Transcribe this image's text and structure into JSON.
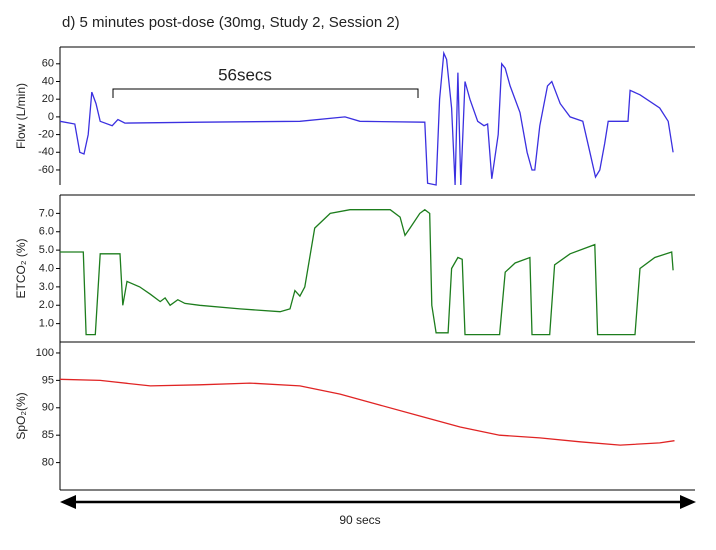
{
  "chart_data": [
    {
      "type": "line",
      "title": "d) 5 minutes post-dose (30mg, Study 2, Session 2)",
      "annotation": "56secs",
      "ylabel": "Flow (L/min)",
      "color": "#3b30e0",
      "x": [
        0,
        2.1,
        2.8,
        3.4,
        4.0,
        4.5,
        5.1,
        5.7,
        7.4,
        8.2,
        9.2,
        19.8,
        34.0,
        40.4,
        42.5,
        51.7,
        52.1,
        53.3,
        53.8,
        54.4,
        54.8,
        55.5,
        56.0,
        56.4,
        56.8,
        57.4,
        58.1,
        59.2,
        60.1,
        60.6,
        61.2,
        62.1,
        62.6,
        63.1,
        63.8,
        65.2,
        66.2,
        66.9,
        67.3,
        68.0,
        69.1,
        69.7,
        70.9,
        72.3,
        74.1,
        75.1,
        75.9,
        76.5,
        77.2,
        77.7,
        80.5,
        80.8,
        82.2,
        85.0,
        86.2,
        86.9
      ],
      "values": [
        -5,
        -8,
        -40,
        -42,
        -20,
        28,
        15,
        -5,
        -10,
        -3,
        -7,
        -6,
        -5,
        0,
        -5,
        -6,
        -75,
        -77,
        20,
        72,
        65,
        10,
        -77,
        50,
        -77,
        40,
        20,
        -5,
        -10,
        -8,
        -70,
        -20,
        60,
        55,
        35,
        5,
        -40,
        -60,
        -60,
        -10,
        35,
        40,
        15,
        0,
        -5,
        -40,
        -68,
        -60,
        -30,
        -5,
        -5,
        30,
        25,
        10,
        -5,
        -40
      ],
      "xlim": [
        0,
        90
      ],
      "ylim": [
        -77,
        79
      ],
      "yticks": [
        60,
        40,
        20,
        0,
        -20,
        -40,
        -60
      ]
    },
    {
      "type": "line",
      "ylabel": "ETCO₂ (%)",
      "color": "#1d7d1d",
      "x": [
        0,
        3.3,
        3.7,
        5.0,
        5.7,
        8.5,
        8.9,
        9.5,
        11.3,
        12.8,
        14.2,
        14.9,
        15.6,
        16.7,
        17.7,
        19.8,
        25.5,
        31.2,
        32.6,
        33.3,
        34.0,
        34.7,
        36.1,
        38.3,
        41.1,
        46.8,
        48.2,
        48.9,
        49.6,
        51.0,
        51.7,
        52.4,
        52.7,
        53.3,
        55.0,
        55.5,
        56.4,
        57.0,
        57.4,
        62.3,
        63.1,
        64.5,
        66.6,
        66.9,
        69.4,
        70.1,
        72.3,
        75.8,
        76.2,
        81.5,
        82.2,
        84.3,
        86.7,
        86.9
      ],
      "values": [
        4.9,
        4.9,
        0.4,
        0.4,
        4.8,
        4.8,
        2.0,
        3.3,
        3.0,
        2.6,
        2.2,
        2.4,
        2.0,
        2.3,
        2.1,
        2.0,
        1.8,
        1.65,
        1.8,
        2.8,
        2.5,
        3.0,
        6.2,
        7.0,
        7.2,
        7.2,
        6.8,
        5.8,
        6.2,
        7.0,
        7.2,
        7.0,
        2.0,
        0.5,
        0.5,
        4.0,
        4.6,
        4.5,
        0.4,
        0.4,
        3.8,
        4.3,
        4.6,
        0.4,
        0.4,
        4.2,
        4.8,
        5.3,
        0.4,
        0.4,
        4.0,
        4.6,
        4.9,
        3.9
      ],
      "xlim": [
        0,
        90
      ],
      "ylim": [
        0,
        8
      ],
      "yticks": [
        {
          "value": 7,
          "label": "7.0"
        },
        {
          "value": 6,
          "label": "6.0"
        },
        {
          "value": 5,
          "label": "5.0"
        },
        {
          "value": 4,
          "label": "4.0"
        },
        {
          "value": 3,
          "label": "3.0"
        },
        {
          "value": 2,
          "label": "2.0"
        },
        {
          "value": 1,
          "label": "1.0"
        }
      ]
    },
    {
      "type": "line",
      "ylabel": "SpO₂(%)",
      "color": "#e02424",
      "xlabel": "90 secs",
      "x": [
        0,
        5.7,
        12.8,
        19.8,
        26.9,
        34.0,
        39.7,
        45.3,
        51.0,
        56.7,
        62.3,
        68.0,
        73.7,
        79.4,
        85.0,
        87.1
      ],
      "values": [
        95.2,
        95,
        94,
        94.2,
        94.5,
        94,
        92.5,
        90.5,
        88.5,
        86.5,
        85,
        84.5,
        83.8,
        83.2,
        83.6,
        84
      ],
      "xlim": [
        0,
        90
      ],
      "ylim": [
        75,
        102
      ],
      "yticks": [
        100,
        95,
        90,
        85,
        80
      ]
    }
  ]
}
